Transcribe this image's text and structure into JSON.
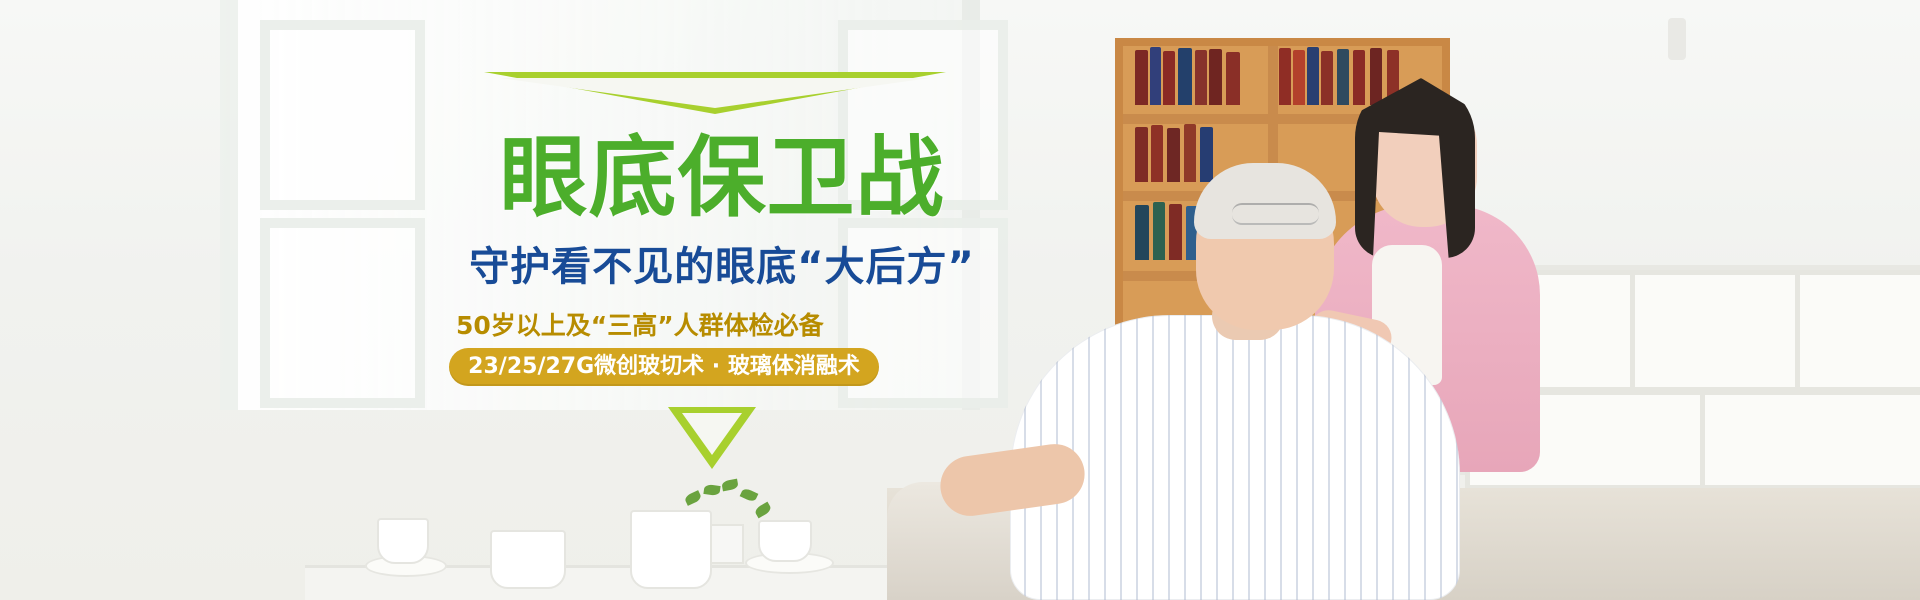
{
  "banner": {
    "headline": "眼底保卫战",
    "subheadline": "守护看不见的眼底“大后方”",
    "audience": "50岁以上及“三高”人群体检必备",
    "procedure": "23/25/27G微创玻切术 · 玻璃体消融术"
  },
  "colors": {
    "headline_green": "#4cae2b",
    "subheadline_blue": "#184b97",
    "gold": "#d3a51f",
    "accent_lime": "#a8d02e"
  },
  "icons": {
    "top_triangle": "triangle-outline-icon",
    "bottom_triangle": "down-arrow-icon"
  }
}
